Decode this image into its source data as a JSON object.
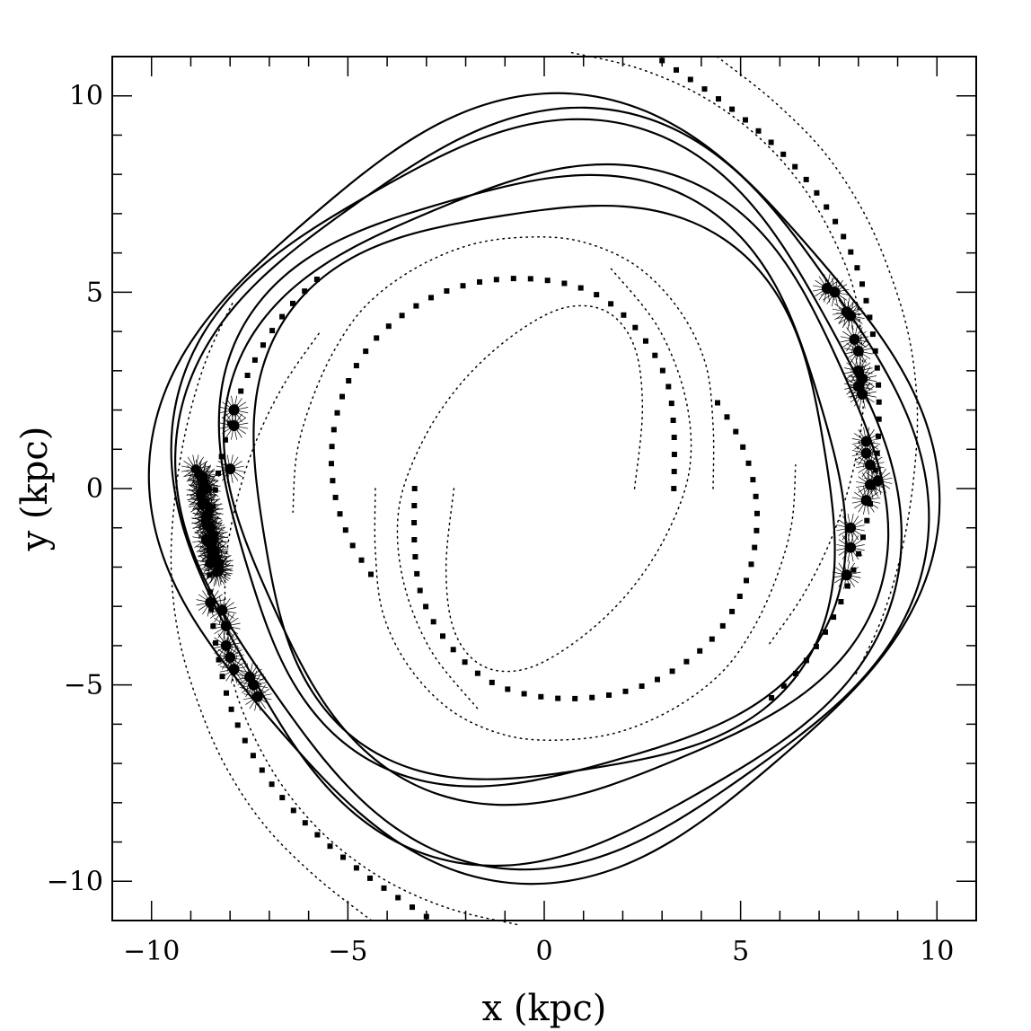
{
  "chart_data": {
    "type": "line",
    "title": "",
    "xlabel": "x (kpc)",
    "ylabel": "y (kpc)",
    "xlim": [
      -11,
      11
    ],
    "ylim": [
      -11,
      11
    ],
    "grid": false,
    "legend": "none",
    "x_ticks": [
      {
        "value": -10,
        "label": "−10"
      },
      {
        "value": -5,
        "label": "−5"
      },
      {
        "value": 0,
        "label": "0"
      },
      {
        "value": 5,
        "label": "5"
      },
      {
        "value": 10,
        "label": "10"
      }
    ],
    "y_ticks": [
      {
        "value": 10,
        "label": "10"
      },
      {
        "value": 5,
        "label": "5"
      },
      {
        "value": 0,
        "label": "0"
      },
      {
        "value": -5,
        "label": "−5"
      },
      {
        "value": -10,
        "label": "−10"
      }
    ],
    "spiral_arms": [
      {
        "style": "dotted",
        "x": [
          2.3,
          2.5,
          2.3,
          1.6,
          0.5,
          -0.8,
          -2.1,
          -3.1,
          -3.7,
          -3.6,
          -2.9,
          -1.7
        ],
        "y": [
          0.0,
          2.0,
          3.6,
          4.5,
          4.6,
          3.9,
          2.7,
          1.2,
          -0.5,
          -2.3,
          -4.1,
          -5.6
        ]
      },
      {
        "style": "squares",
        "x": [
          3.3,
          3.3,
          3.1,
          2.4,
          1.4,
          0.1,
          -1.4,
          -2.8,
          -4.0,
          -4.8,
          -5.3,
          -5.4,
          -5.0,
          -4.2
        ],
        "y": [
          0.0,
          1.5,
          2.8,
          4.0,
          4.9,
          5.3,
          5.3,
          4.9,
          4.1,
          3.1,
          1.8,
          0.3,
          -1.2,
          -2.5
        ]
      },
      {
        "style": "dotted",
        "x": [
          4.3,
          4.3,
          4.1,
          3.4,
          2.3,
          0.9,
          -0.5,
          -1.9,
          -3.3,
          -4.5,
          -5.3,
          -5.9,
          -6.3,
          -6.4
        ],
        "y": [
          0.0,
          1.6,
          3.2,
          4.6,
          5.7,
          6.3,
          6.4,
          6.2,
          5.6,
          4.7,
          3.6,
          2.3,
          0.9,
          -0.6
        ]
      },
      {
        "style": "dotted",
        "x": [
          -2.3,
          -2.5,
          -2.3,
          -1.6,
          -0.5,
          0.8,
          2.1,
          3.1,
          3.7,
          3.6,
          2.9,
          1.7
        ],
        "y": [
          0.0,
          -2.0,
          -3.6,
          -4.5,
          -4.6,
          -3.9,
          -2.7,
          -1.2,
          0.5,
          2.3,
          4.1,
          5.6
        ]
      },
      {
        "style": "squares",
        "x": [
          -3.3,
          -3.3,
          -3.1,
          -2.4,
          -1.4,
          -0.1,
          1.4,
          2.8,
          4.0,
          4.8,
          5.3,
          5.4,
          5.0,
          4.2
        ],
        "y": [
          0.0,
          -1.5,
          -2.8,
          -4.0,
          -4.9,
          -5.3,
          -5.3,
          -4.9,
          -4.1,
          -3.1,
          -1.8,
          -0.3,
          1.2,
          2.5
        ]
      },
      {
        "style": "dotted",
        "x": [
          -4.3,
          -4.3,
          -4.1,
          -3.4,
          -2.3,
          -0.9,
          0.5,
          1.9,
          3.3,
          4.5,
          5.3,
          5.9,
          6.3,
          6.4
        ],
        "y": [
          0.0,
          -1.6,
          -3.2,
          -4.6,
          -5.7,
          -6.3,
          -6.4,
          -6.2,
          -5.6,
          -4.7,
          -3.6,
          -2.3,
          -0.9,
          0.6
        ]
      },
      {
        "style": "squares",
        "x": [
          3.0,
          4.6,
          6.0,
          7.1,
          7.9,
          8.3,
          8.5,
          8.5,
          8.3,
          7.9,
          7.3,
          6.5,
          5.5
        ],
        "y": [
          10.9,
          9.8,
          8.6,
          7.3,
          5.8,
          4.3,
          2.8,
          1.2,
          -0.4,
          -2.0,
          -3.4,
          -4.6,
          -5.6
        ]
      },
      {
        "style": "dotted",
        "x": [
          0.7,
          2.4,
          4.0,
          5.4,
          6.5,
          7.3,
          7.9,
          8.1,
          8.1,
          7.8,
          7.3,
          6.6,
          5.7
        ],
        "y": [
          11.1,
          10.7,
          10.0,
          9.0,
          7.8,
          6.5,
          5.0,
          3.4,
          1.8,
          0.2,
          -1.3,
          -2.7,
          -4.0
        ]
      },
      {
        "style": "dotted",
        "x": [
          4.4,
          5.8,
          7.1,
          8.1,
          8.8,
          9.3,
          9.5,
          9.4,
          9.1,
          8.6,
          7.9
        ],
        "y": [
          11.0,
          9.9,
          8.6,
          7.1,
          5.5,
          3.8,
          2.0,
          0.2,
          -1.6,
          -3.3,
          -4.8
        ]
      },
      {
        "style": "squares",
        "x": [
          -3.0,
          -4.6,
          -6.0,
          -7.1,
          -7.9,
          -8.3,
          -8.5,
          -8.5,
          -8.3,
          -7.9,
          -7.3,
          -6.5,
          -5.5
        ],
        "y": [
          -10.9,
          -9.8,
          -8.6,
          -7.3,
          -5.8,
          -4.3,
          -2.8,
          -1.2,
          0.4,
          2.0,
          3.4,
          4.6,
          5.6
        ]
      },
      {
        "style": "dotted",
        "x": [
          -0.7,
          -2.4,
          -4.0,
          -5.4,
          -6.5,
          -7.3,
          -7.9,
          -8.1,
          -8.1,
          -7.8,
          -7.3,
          -6.6,
          -5.7
        ],
        "y": [
          -11.1,
          -10.7,
          -10.0,
          -9.0,
          -7.8,
          -6.5,
          -5.0,
          -3.4,
          -1.8,
          -0.2,
          1.3,
          2.7,
          4.0
        ]
      },
      {
        "style": "dotted",
        "x": [
          -4.4,
          -5.8,
          -7.1,
          -8.1,
          -8.8,
          -9.3,
          -9.5,
          -9.4,
          -9.1,
          -8.6,
          -7.9
        ],
        "y": [
          -11.0,
          -9.9,
          -8.6,
          -7.1,
          -5.5,
          -3.8,
          -2.0,
          -0.2,
          1.6,
          3.3,
          4.8
        ]
      }
    ],
    "orbits": [
      {
        "rx": 9.6,
        "ry": 9.6,
        "cx": 0.0,
        "cy": 0.0,
        "amp": 0.05,
        "phase": 0.3
      },
      {
        "rx": 9.2,
        "ry": 9.3,
        "cx": 0.2,
        "cy": 0.0,
        "amp": 0.05,
        "phase": 0.7
      },
      {
        "rx": 9.0,
        "ry": 9.2,
        "cx": -0.2,
        "cy": -0.1,
        "amp": 0.05,
        "phase": 1.1
      },
      {
        "rx": 8.3,
        "ry": 8.0,
        "cx": 0.3,
        "cy": 0.1,
        "amp": 0.05,
        "phase": 1.5
      },
      {
        "rx": 8.0,
        "ry": 7.8,
        "cx": -0.3,
        "cy": 0.2,
        "amp": 0.05,
        "phase": 2.0
      },
      {
        "rx": 7.6,
        "ry": 7.5,
        "cx": 0.0,
        "cy": -0.1,
        "amp": 0.05,
        "phase": 2.5
      }
    ],
    "stars": [
      {
        "x": 7.2,
        "y": 5.1
      },
      {
        "x": 7.4,
        "y": 5.0
      },
      {
        "x": 7.7,
        "y": 4.5
      },
      {
        "x": 7.8,
        "y": 4.4
      },
      {
        "x": 7.9,
        "y": 3.8
      },
      {
        "x": 8.0,
        "y": 3.5
      },
      {
        "x": 8.0,
        "y": 3.0
      },
      {
        "x": 8.1,
        "y": 2.8
      },
      {
        "x": 8.0,
        "y": 2.6
      },
      {
        "x": 8.1,
        "y": 2.4
      },
      {
        "x": 8.2,
        "y": 1.2
      },
      {
        "x": 8.2,
        "y": 0.9
      },
      {
        "x": 8.3,
        "y": 0.6
      },
      {
        "x": 8.5,
        "y": 0.2
      },
      {
        "x": 8.3,
        "y": 0.1
      },
      {
        "x": 8.2,
        "y": -0.3
      },
      {
        "x": 7.8,
        "y": -1.0
      },
      {
        "x": 7.8,
        "y": -1.5
      },
      {
        "x": 7.7,
        "y": -2.2
      },
      {
        "x": -7.9,
        "y": 2.0
      },
      {
        "x": -7.9,
        "y": 1.6
      },
      {
        "x": -8.0,
        "y": 0.5
      },
      {
        "x": -8.7,
        "y": 0.3
      },
      {
        "x": -8.6,
        "y": 0.0
      },
      {
        "x": -8.7,
        "y": -0.4
      },
      {
        "x": -8.6,
        "y": -0.7
      },
      {
        "x": -8.5,
        "y": -1.0
      },
      {
        "x": -8.6,
        "y": -1.3
      },
      {
        "x": -8.4,
        "y": -1.6
      },
      {
        "x": -8.5,
        "y": -1.9
      },
      {
        "x": -8.3,
        "y": -2.1
      },
      {
        "x": -8.5,
        "y": -2.9
      },
      {
        "x": -8.2,
        "y": -3.1
      },
      {
        "x": -8.1,
        "y": -3.5
      },
      {
        "x": -8.1,
        "y": -4.0
      },
      {
        "x": -8.0,
        "y": -4.3
      },
      {
        "x": -7.9,
        "y": -4.6
      },
      {
        "x": -7.5,
        "y": -4.8
      },
      {
        "x": -7.4,
        "y": -5.0
      },
      {
        "x": -7.3,
        "y": -5.3
      }
    ],
    "star_cluster_band": {
      "x_min": -8.8,
      "x_max": -8.3,
      "y_min": -2.2,
      "y_max": 0.5
    }
  }
}
